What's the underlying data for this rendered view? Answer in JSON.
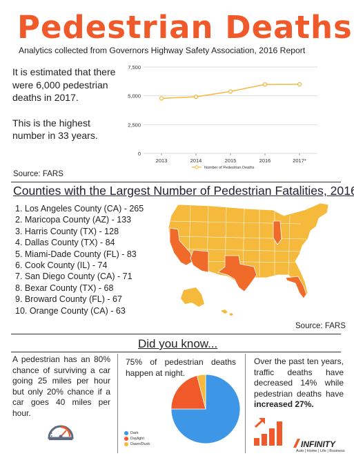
{
  "header": {
    "title": "Pedestrian Deaths",
    "subtitle": "Analytics collected from Governors Highway Safety Association, 2016 Report"
  },
  "estimate": {
    "line1": "It is estimated that there were 6,000 pedestrian deaths in 2017.",
    "line2": "This is the highest number in 33 years."
  },
  "source_fars": "Source: FARS",
  "source_fars_2": "Source: FARS",
  "chart_data": {
    "type": "line",
    "categories": [
      "2013",
      "2014",
      "2015",
      "2016",
      "2017*"
    ],
    "series": [
      {
        "name": "Number of Pedestrian Deaths",
        "values": [
          4779,
          4910,
          5376,
          5987,
          6000
        ]
      }
    ],
    "ylim": [
      0,
      7500
    ],
    "yticks": [
      "0",
      "2,500",
      "5,000",
      "7,500"
    ],
    "ytick_values": [
      0,
      2500,
      5000,
      7500
    ],
    "grid": true,
    "legend_position": "bottom",
    "color": "#f5b93c"
  },
  "counties": {
    "title": "Counties with the Largest Number of Pedestrian Fatalities, 2016",
    "items": [
      "1. Los Angeles County (CA) - 265",
      "2. Maricopa County (AZ) - 133",
      "3. Harris County (TX) - 128",
      "4. Dallas County (TX) - 84",
      "5. Miami-Dade County (FL) - 83",
      "6. Cook County (IL) - 74",
      "7. San Diego County (CA) - 71",
      "8. Bexar County (TX) - 68",
      "9. Broward County (FL) - 67",
      "10. Orange County (CA) - 63"
    ],
    "highlight_states": [
      "CA",
      "AZ",
      "TX",
      "FL",
      "IL"
    ],
    "highlight_color": "#f06a2a",
    "base_color": "#f5b93c"
  },
  "did_you_know": {
    "title": "Did you know...",
    "fact1": "A pedestrian has an 80% chance of surviving a car going 25 miles per hour but only 20% chance if a car goes 40 miles per hour.",
    "fact2": "75% of pedestrian deaths happen at night.",
    "fact3_pre": "Over the past ten years, traffic deaths have decreased 14% while pedestrian deaths have ",
    "fact3_bold": "increased 27%.",
    "pie": {
      "labels": [
        "Dark",
        "Daylight",
        "Dawn/Dusk"
      ],
      "values": [
        75,
        21,
        4
      ],
      "colors": [
        "#3d97e6",
        "#f05a2a",
        "#f5b93c"
      ]
    }
  },
  "icons": [
    "speedometer-icon",
    "growth-chart-icon"
  ],
  "brand": {
    "name": "INFINITY",
    "tagline": "Auto | Home | Life | Business"
  }
}
